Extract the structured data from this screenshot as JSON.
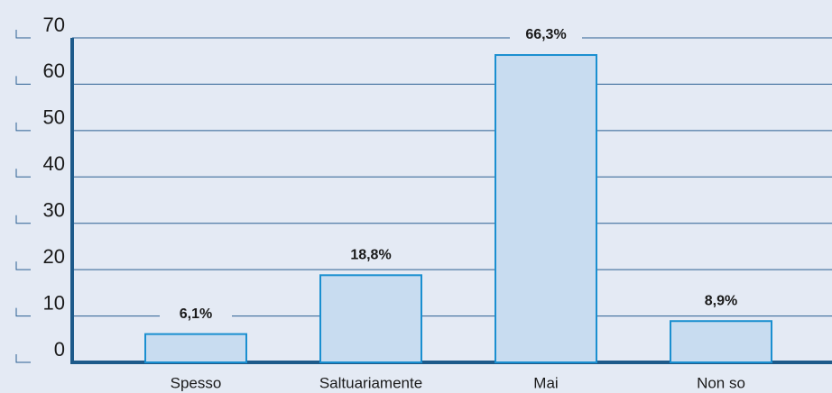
{
  "chart_data": {
    "type": "bar",
    "categories": [
      "Spesso",
      "Saltuariamente",
      "Mai",
      "Non so"
    ],
    "values": [
      6.1,
      18.8,
      66.3,
      8.9
    ],
    "value_labels": [
      "6,1%",
      "18,8%",
      "66,3%",
      "8,9%"
    ],
    "color": "#c8dcf0",
    "edge_color": "#1a8fd0",
    "ylim": [
      0,
      70
    ],
    "yticks": [
      0,
      10,
      20,
      30,
      40,
      50,
      60,
      70
    ],
    "grid": true
  }
}
